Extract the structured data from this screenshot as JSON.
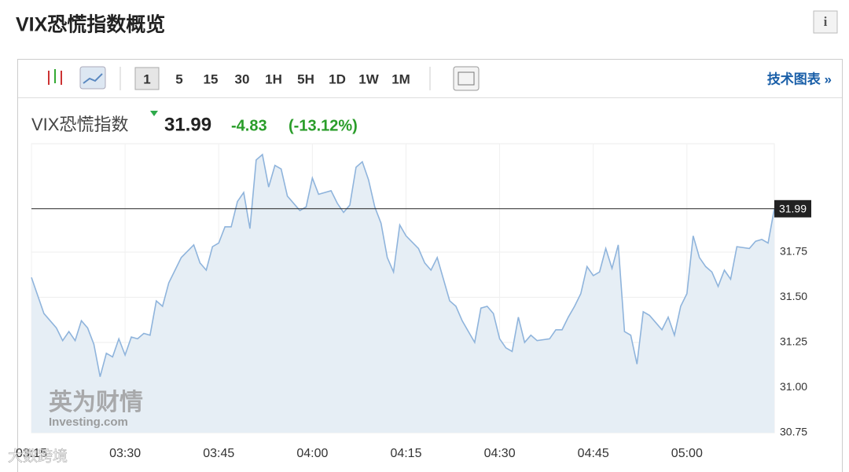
{
  "header": {
    "title": "VIX恐慌指数概览",
    "info_icon": "i"
  },
  "toolbar": {
    "intervals": [
      "1",
      "5",
      "15",
      "30",
      "1H",
      "5H",
      "1D",
      "1W",
      "1M"
    ],
    "link": "技术图表 »"
  },
  "quote": {
    "name": "VIX恐慌指数",
    "last": "31.99",
    "change": "-4.83",
    "change_pct": "(-13.12%)"
  },
  "watermark": {
    "brand": "英为财情",
    "sub": "Investing.com",
    "overlay": "大数跨境"
  },
  "chart_data": {
    "type": "area",
    "color": "#8fb4dc",
    "fill": "#e6eef5",
    "grid": true,
    "x": [
      "03:15",
      "03:17",
      "03:19",
      "03:20",
      "03:21",
      "03:22",
      "03:23",
      "03:24",
      "03:25",
      "03:26",
      "03:27",
      "03:28",
      "03:29",
      "03:30",
      "03:31",
      "03:32",
      "03:33",
      "03:34",
      "03:35",
      "03:36",
      "03:37",
      "03:39",
      "03:41",
      "03:42",
      "03:43",
      "03:44",
      "03:45",
      "03:46",
      "03:47",
      "03:48",
      "03:49",
      "03:50",
      "03:51",
      "03:52",
      "03:53",
      "03:54",
      "03:55",
      "03:56",
      "03:58",
      "03:59",
      "04:00",
      "04:01",
      "04:03",
      "04:04",
      "04:05",
      "04:06",
      "04:07",
      "04:08",
      "04:09",
      "04:10",
      "04:11",
      "04:12",
      "04:13",
      "04:14",
      "04:15",
      "04:17",
      "04:18",
      "04:19",
      "04:20",
      "04:22",
      "04:23",
      "04:24",
      "04:26",
      "04:27",
      "04:28",
      "04:29",
      "04:30",
      "04:31",
      "04:32",
      "04:33",
      "04:34",
      "04:35",
      "04:36",
      "04:38",
      "04:39",
      "04:40",
      "04:41",
      "04:42",
      "04:43",
      "04:44",
      "04:45",
      "04:46",
      "04:47",
      "04:48",
      "04:49",
      "04:50",
      "04:51",
      "04:52",
      "04:53",
      "04:54",
      "04:55",
      "04:56",
      "04:57",
      "04:58",
      "04:59",
      "05:00",
      "05:01",
      "05:02",
      "05:03",
      "05:04",
      "05:05",
      "05:06",
      "05:07",
      "05:08",
      "05:10",
      "05:11",
      "05:12",
      "05:13",
      "05:14"
    ],
    "values": [
      31.61,
      31.41,
      31.33,
      31.26,
      31.31,
      31.26,
      31.37,
      31.33,
      31.24,
      31.06,
      31.19,
      31.17,
      31.27,
      31.18,
      31.28,
      31.27,
      31.3,
      31.29,
      31.48,
      31.45,
      31.58,
      31.72,
      31.79,
      31.69,
      31.65,
      31.78,
      31.8,
      31.89,
      31.89,
      32.03,
      32.08,
      31.88,
      32.26,
      32.29,
      32.11,
      32.23,
      32.21,
      32.06,
      31.98,
      32.0,
      32.16,
      32.07,
      32.09,
      32.02,
      31.97,
      32.01,
      32.22,
      32.25,
      32.15,
      32.0,
      31.91,
      31.72,
      31.64,
      31.9,
      31.84,
      31.77,
      31.69,
      31.65,
      31.72,
      31.48,
      31.45,
      31.37,
      31.25,
      31.44,
      31.45,
      31.41,
      31.27,
      31.22,
      31.2,
      31.39,
      31.25,
      31.29,
      31.26,
      31.27,
      31.32,
      31.32,
      31.39,
      31.45,
      31.52,
      31.67,
      31.62,
      31.64,
      31.77,
      31.66,
      31.79,
      31.31,
      31.29,
      31.13,
      31.42,
      31.4,
      31.36,
      31.32,
      31.39,
      31.29,
      31.45,
      31.52,
      31.84,
      31.72,
      31.67,
      31.64,
      31.56,
      31.65,
      31.6,
      31.78,
      31.77,
      31.81,
      31.82,
      31.8,
      31.99
    ],
    "xlim": [
      "03:15",
      "05:14"
    ],
    "xticks": [
      "03:15",
      "03:30",
      "03:45",
      "04:00",
      "04:15",
      "04:30",
      "04:45",
      "05:00"
    ],
    "ylim": [
      30.75,
      32.35
    ],
    "yticks": [
      30.75,
      {
        "value": 31,
        "label": "31.00"
      },
      31.25,
      {
        "value": 31.5,
        "label": "31.50"
      },
      31.75
    ],
    "reference_line": 31.99
  }
}
